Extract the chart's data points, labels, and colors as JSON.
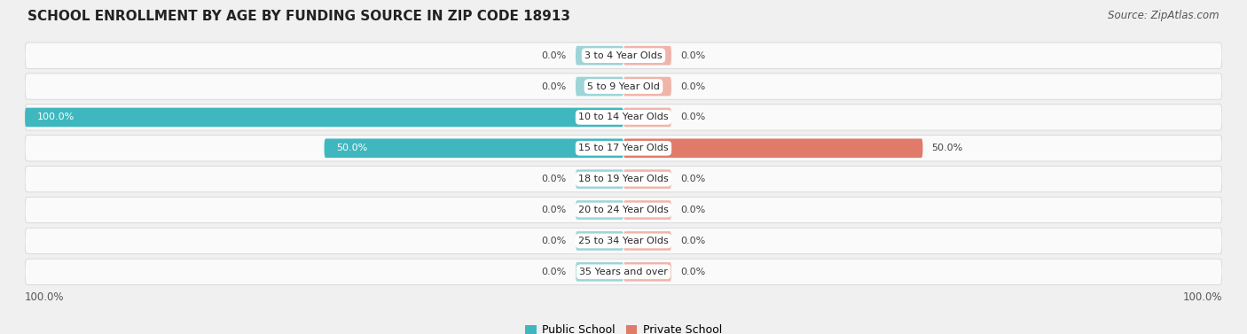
{
  "title": "SCHOOL ENROLLMENT BY AGE BY FUNDING SOURCE IN ZIP CODE 18913",
  "source": "Source: ZipAtlas.com",
  "categories": [
    "3 to 4 Year Olds",
    "5 to 9 Year Old",
    "10 to 14 Year Olds",
    "15 to 17 Year Olds",
    "18 to 19 Year Olds",
    "20 to 24 Year Olds",
    "25 to 34 Year Olds",
    "35 Years and over"
  ],
  "public_values": [
    0.0,
    0.0,
    100.0,
    50.0,
    0.0,
    0.0,
    0.0,
    0.0
  ],
  "private_values": [
    0.0,
    0.0,
    0.0,
    50.0,
    0.0,
    0.0,
    0.0,
    0.0
  ],
  "public_color": "#3eb8be",
  "public_color_light": "#9dd4d8",
  "private_color": "#e07b6a",
  "private_color_light": "#f0b5aa",
  "bg_color": "#f0f0f0",
  "row_bg_color": "#e8e8e8",
  "bar_bg_color": "#fafafa",
  "axis_range": 100,
  "min_stub": 8.0,
  "legend_public": "Public School",
  "legend_private": "Private School",
  "bottom_left_label": "100.0%",
  "bottom_right_label": "100.0%"
}
